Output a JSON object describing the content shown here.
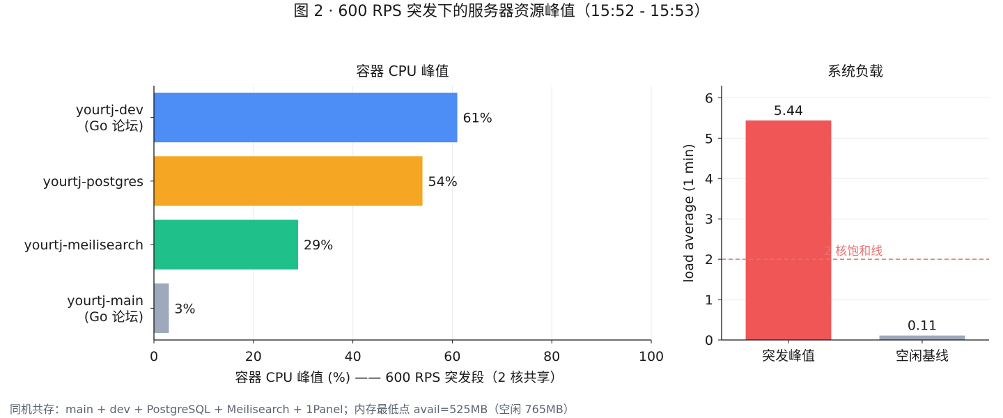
{
  "figure": {
    "title": "图 2 · 600 RPS 突发下的服务器资源峰值（15:52 - 15:53）",
    "footnote": "同机共存：main + dev + PostgreSQL + Meilisearch + 1Panel；内存最低点 avail=525MB（空闲 765MB）"
  },
  "chart_data": [
    {
      "type": "bar",
      "orientation": "horizontal",
      "title": "容器 CPU 峰值",
      "xlabel": "容器 CPU 峰值 (%) —— 600 RPS 突发段（2 核共享）",
      "ylabel": "",
      "categories": [
        [
          "yourtj-dev",
          "(Go 论坛)"
        ],
        [
          "yourtj-postgres"
        ],
        [
          "yourtj-meilisearch"
        ],
        [
          "yourtj-main",
          "(Go 论坛)"
        ]
      ],
      "values": [
        61,
        54,
        29,
        3
      ],
      "data_labels": [
        "61%",
        "54%",
        "29%",
        "3%"
      ],
      "colors": [
        "#4c8df6",
        "#f5a623",
        "#20c08b",
        "#9ea9bb"
      ],
      "xlim": [
        0,
        100
      ],
      "xticks": [
        0,
        20,
        40,
        60,
        80,
        100
      ],
      "grid": "vertical"
    },
    {
      "type": "bar",
      "orientation": "vertical",
      "title": "系统负载",
      "xlabel": "",
      "ylabel": "load average (1 min)",
      "categories": [
        "突发峰值",
        "空闲基线"
      ],
      "values": [
        5.44,
        0.11
      ],
      "data_labels": [
        "5.44",
        "0.11"
      ],
      "colors": [
        "#f05656",
        "#9ea9bb"
      ],
      "ylim": [
        0,
        6.3
      ],
      "yticks": [
        0,
        1,
        2,
        3,
        4,
        5,
        6
      ],
      "grid": "horizontal",
      "reference_line": {
        "value": 2,
        "label": "2 核饱和线",
        "color": "#e57373"
      }
    }
  ]
}
